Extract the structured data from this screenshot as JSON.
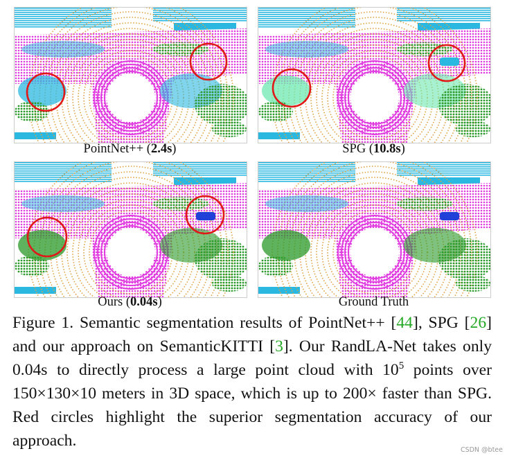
{
  "figure": {
    "panels": [
      {
        "label": [
          "PointNet++ (",
          "2.4s",
          ")"
        ]
      },
      {
        "label": [
          "SPG (",
          "10.8s",
          ")"
        ]
      },
      {
        "label": [
          "Ours (",
          "0.04s",
          ")"
        ]
      },
      {
        "label": [
          "Ground Truth"
        ]
      }
    ],
    "caption": [
      "Figure 1. Semantic segmentation results of PointNet++ [",
      "44",
      "], SPG [",
      "26",
      "] and our approach on SemanticKITTI [",
      "3",
      "].  Our RandLA-Net takes only 0.04s to directly process a large point cloud with 10",
      "5",
      " points over 150×130×10 meters in 3D space, which is up to 200× faster than SPG. Red circles highlight the superior segmentation accuracy of our approach."
    ]
  },
  "watermark": "CSDN @btee"
}
